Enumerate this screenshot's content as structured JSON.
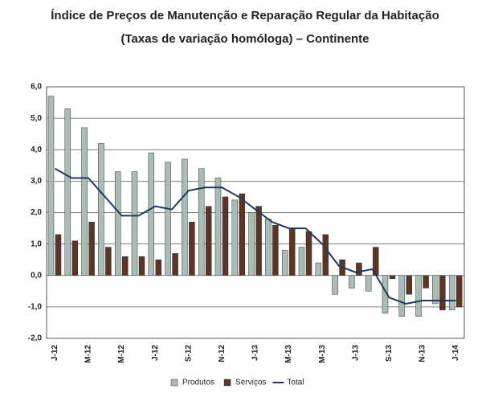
{
  "chart_data": {
    "type": "bar-line",
    "title": "Índice de Preços de Manutenção e Reparação Regular da Habitação",
    "subtitle": "(Taxas de variação homóloga) – Continente",
    "categories": [
      "J-12",
      null,
      "M-12",
      null,
      "M-12",
      null,
      "J-12",
      null,
      "S-12",
      null,
      "N-12",
      null,
      "J-13",
      null,
      "M-13",
      null,
      "M-13",
      null,
      "J-13",
      null,
      "S-13",
      null,
      "N-13",
      null,
      "J-14"
    ],
    "series": [
      {
        "name": "Produtos",
        "color": "#a9bcb6",
        "type": "bar",
        "values": [
          5.7,
          5.3,
          4.7,
          4.2,
          3.3,
          3.3,
          3.9,
          3.6,
          3.7,
          3.4,
          3.1,
          2.4,
          2.0,
          1.8,
          0.8,
          0.9,
          0.4,
          -0.6,
          -0.4,
          -0.5,
          -1.2,
          -1.3,
          -1.3,
          -0.9,
          -1.1
        ]
      },
      {
        "name": "Serviços",
        "color": "#5b3526",
        "type": "bar",
        "values": [
          1.3,
          1.1,
          1.7,
          0.9,
          0.6,
          0.6,
          0.5,
          0.7,
          1.7,
          2.2,
          2.5,
          2.6,
          2.2,
          1.6,
          1.5,
          1.4,
          1.3,
          0.5,
          0.4,
          0.9,
          -0.1,
          -0.6,
          -0.4,
          -1.1,
          -1.0
        ]
      },
      {
        "name": "Total",
        "color": "#1f3a5c",
        "type": "line",
        "values": [
          3.4,
          3.1,
          3.1,
          2.5,
          1.9,
          1.9,
          2.2,
          2.1,
          2.7,
          2.8,
          2.8,
          2.5,
          2.1,
          1.7,
          1.5,
          1.5,
          1.0,
          0.3,
          0.1,
          0.2,
          -0.7,
          -0.9,
          -0.8,
          -0.8,
          -0.8
        ]
      }
    ],
    "ylim": [
      -2,
      6
    ],
    "yticks": [
      {
        "value": -2,
        "label": "-2,0"
      },
      {
        "value": -1,
        "label": "-1,0"
      },
      {
        "value": 0,
        "label": "0,0"
      },
      {
        "value": 1,
        "label": "1,0"
      },
      {
        "value": 2,
        "label": "2,0"
      },
      {
        "value": 3,
        "label": "3,0"
      },
      {
        "value": 4,
        "label": "4,0"
      },
      {
        "value": 5,
        "label": "5,0"
      },
      {
        "value": 6,
        "label": "6,0"
      }
    ],
    "grid": true,
    "legend": "bottom"
  }
}
